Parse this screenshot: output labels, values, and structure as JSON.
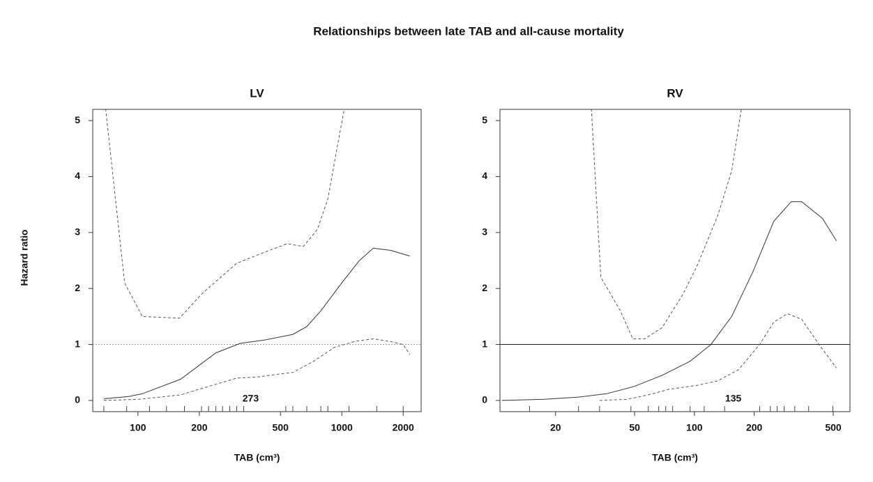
{
  "title": "Relationships between late TAB and all-cause mortality",
  "ylabel": "Hazard ratio",
  "chart_data": [
    {
      "type": "line",
      "title": "LV",
      "xlabel": "TAB (cm³)",
      "log_x": true,
      "xlim": [
        60,
        2450
      ],
      "ylim": [
        -0.2,
        5.2
      ],
      "xticks": [
        100,
        200,
        500,
        1000,
        2000
      ],
      "yticks": [
        0,
        1,
        2,
        3,
        4,
        5
      ],
      "hline": {
        "value": 1,
        "color": "#999999",
        "style": "dotted"
      },
      "series": [
        {
          "color": "#333333",
          "style": "solid",
          "x": [
            68,
            90,
            105,
            162,
            241,
            318,
            419,
            575,
            673,
            789,
            1000,
            1219,
            1428,
            1741,
            2155
          ],
          "values": [
            0.03,
            0.07,
            0.12,
            0.38,
            0.85,
            1.02,
            1.08,
            1.18,
            1.32,
            1.6,
            2.1,
            2.5,
            2.72,
            2.68,
            2.58
          ]
        },
        {
          "color": "#555555",
          "style": "dashed",
          "x": [
            69,
            86,
            105,
            160,
            205,
            305,
            419,
            540,
            647,
            758,
            854,
            946,
            1040
          ],
          "values": [
            5.3,
            2.1,
            1.5,
            1.47,
            1.9,
            2.45,
            2.65,
            2.8,
            2.75,
            3.05,
            3.6,
            4.5,
            5.3
          ]
        },
        {
          "color": "#555555",
          "style": "dashed",
          "x": [
            68,
            101,
            162,
            222,
            305,
            387,
            489,
            575,
            727,
            921,
            1173,
            1428,
            1741,
            2000,
            2155
          ],
          "values": [
            0.0,
            0.02,
            0.1,
            0.25,
            0.4,
            0.42,
            0.47,
            0.5,
            0.7,
            0.95,
            1.06,
            1.1,
            1.05,
            1.0,
            0.82
          ]
        }
      ],
      "rug": [
        68,
        88,
        114,
        138,
        169,
        205,
        222,
        241,
        260,
        282,
        305,
        330,
        531,
        575,
        673,
        789,
        854,
        1084,
        1484,
        2000
      ],
      "annotation": {
        "text": "273",
        "x": 357,
        "y": 0.0
      }
    },
    {
      "type": "line",
      "title": "RV",
      "xlabel": "TAB (cm³)",
      "log_x": true,
      "xlim": [
        10.5,
        607
      ],
      "ylim": [
        -0.2,
        5.2
      ],
      "xticks": [
        20,
        50,
        100,
        200,
        500
      ],
      "yticks": [
        0,
        1,
        2,
        3,
        4,
        5
      ],
      "hline": {
        "value": 1,
        "color": "#222222",
        "style": "solid"
      },
      "series": [
        {
          "color": "#333333",
          "style": "solid",
          "x": [
            10.74,
            17.5,
            26.1,
            36.1,
            49.8,
            68.8,
            95.1,
            121,
            154,
            197,
            251,
            307,
            347,
            442,
            519
          ],
          "values": [
            0.0,
            0.02,
            0.06,
            0.12,
            0.25,
            0.45,
            0.7,
            1.0,
            1.5,
            2.3,
            3.2,
            3.55,
            3.55,
            3.25,
            2.85
          ]
        },
        {
          "color": "#555555",
          "style": "dashed",
          "x": [
            30.2,
            33.8,
            42.4,
            49.0,
            56.2,
            68.8,
            87.7,
            103,
            131,
            154,
            174
          ],
          "values": [
            5.3,
            2.2,
            1.6,
            1.1,
            1.1,
            1.3,
            1.9,
            2.4,
            3.3,
            4.1,
            5.3
          ]
        },
        {
          "color": "#555555",
          "style": "dashed",
          "x": [
            33.3,
            45.9,
            58.6,
            74.6,
            103,
            131,
            167,
            213,
            251,
            294,
            347,
            424,
            519
          ],
          "values": [
            0.0,
            0.02,
            0.1,
            0.2,
            0.27,
            0.35,
            0.55,
            1.0,
            1.4,
            1.55,
            1.45,
            1.0,
            0.58
          ]
        }
      ],
      "rug": [
        14.8,
        26.1,
        33.3,
        47.9,
        58.6,
        66.1,
        71.7,
        77.7,
        95.1,
        112,
        142,
        213,
        241,
        261,
        283,
        320,
        376,
        498
      ],
      "annotation": {
        "text": "135",
        "x": 157,
        "y": 0.0
      }
    }
  ]
}
